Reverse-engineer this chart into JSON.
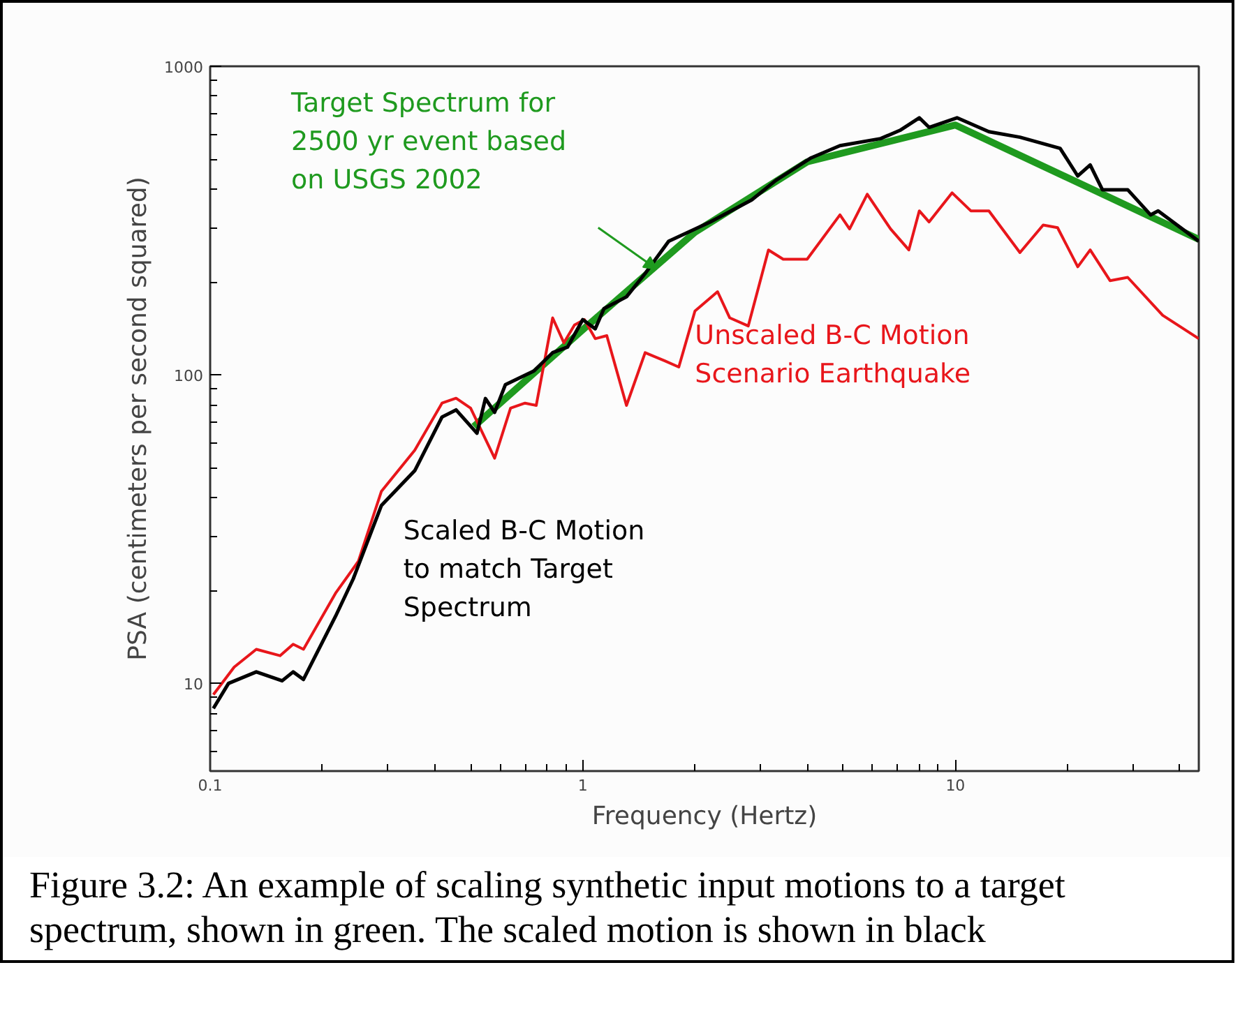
{
  "chart_data": {
    "type": "line",
    "xlabel": "Frequency (Hertz)",
    "ylabel": "PSA (centimeters per second squared)",
    "log": "xy",
    "xlim": [
      0.1,
      45
    ],
    "ylim": [
      5.2,
      1000
    ],
    "xticks": [
      0.1,
      1,
      10
    ],
    "yticks": [
      10,
      100,
      1000
    ],
    "grid": false,
    "line_style": "solid",
    "marker": "none",
    "series": [
      {
        "name": "Target Spectrum for\n2500 yr event based\non USGS 2002",
        "color": "#1f9a1f",
        "x": [
          0.51,
          1,
          2,
          4,
          10,
          45
        ],
        "values": [
          68,
          140,
          290,
          490,
          645,
          275
        ]
      },
      {
        "name": "Unscaled B-C Motion\nScenario Earthquake",
        "color": "#e8161b",
        "x": [
          0.102,
          0.116,
          0.133,
          0.154,
          0.167,
          0.178,
          0.217,
          0.25,
          0.288,
          0.354,
          0.419,
          0.457,
          0.5,
          0.58,
          0.64,
          0.7,
          0.75,
          0.83,
          0.89,
          0.95,
          1.01,
          1.08,
          1.16,
          1.31,
          1.47,
          1.66,
          1.81,
          2.0,
          2.3,
          2.48,
          2.78,
          3.15,
          3.45,
          4.0,
          4.9,
          5.2,
          5.8,
          6.7,
          7.5,
          8.0,
          8.5,
          9.8,
          11,
          12.3,
          14.9,
          17.2,
          18.8,
          21.3,
          23,
          26,
          29,
          36,
          45
        ],
        "values": [
          9.2,
          11.3,
          12.9,
          12.3,
          13.4,
          12.9,
          19.6,
          24.9,
          41.9,
          57,
          81,
          84,
          78,
          53.7,
          78,
          81,
          79.6,
          153,
          127,
          145,
          151,
          131,
          134,
          79.6,
          118,
          111,
          106,
          161,
          186,
          153,
          144,
          254,
          237,
          237,
          330,
          297,
          385,
          297,
          254,
          340,
          313,
          389,
          340,
          340,
          249,
          306,
          300,
          224,
          254,
          202,
          207,
          156,
          131
        ]
      },
      {
        "name": "Scaled B-C Motion\nto match Target\n Spectrum",
        "color": "#000000",
        "x": [
          0.102,
          0.112,
          0.133,
          0.156,
          0.167,
          0.178,
          0.217,
          0.242,
          0.288,
          0.354,
          0.419,
          0.457,
          0.52,
          0.548,
          0.58,
          0.62,
          0.74,
          0.83,
          0.91,
          1.0,
          1.08,
          1.14,
          1.31,
          1.47,
          1.7,
          2.2,
          2.84,
          3.3,
          4.1,
          4.9,
          6.3,
          7.1,
          8.0,
          8.5,
          10.1,
          12.3,
          14.9,
          19.1,
          21.3,
          23,
          24.8,
          29,
          33.4,
          35,
          45
        ],
        "values": [
          8.3,
          10,
          10.9,
          10.2,
          10.9,
          10.3,
          16.5,
          21.8,
          37.7,
          48.9,
          73,
          77,
          64.7,
          83.8,
          75.6,
          93,
          103,
          118,
          123,
          151,
          141,
          164,
          179,
          213,
          271,
          313,
          369,
          427,
          505,
          553,
          583,
          620,
          681,
          634,
          681,
          614,
          589,
          542,
          441,
          479,
          398,
          398,
          330,
          340,
          271
        ]
      }
    ],
    "annotations": [
      "Figure 3.2: An example of scaling synthetic input motions to a target spectrum, shown in green.  The scaled motion is shown in black"
    ]
  }
}
